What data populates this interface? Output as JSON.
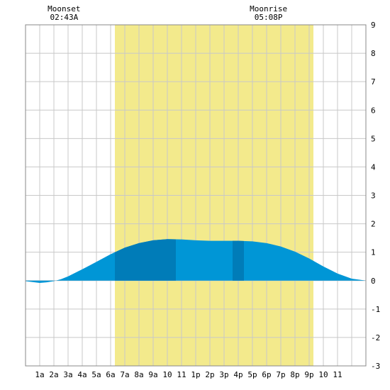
{
  "moon_events": [
    {
      "label": "Moonset",
      "time": "02:43A",
      "hour": 2.717
    },
    {
      "label": "Moonrise",
      "time": "05:08P",
      "hour": 17.133
    }
  ],
  "chart_data": {
    "type": "area",
    "title": "",
    "xlabel": "",
    "ylabel": "",
    "x_tick_labels": [
      "1a",
      "2a",
      "3a",
      "4a",
      "5a",
      "6a",
      "7a",
      "8a",
      "9a",
      "10",
      "11",
      "1p",
      "2p",
      "3p",
      "4p",
      "5p",
      "6p",
      "7p",
      "8p",
      "9p",
      "10",
      "11"
    ],
    "y_tick_labels": [
      "9",
      "8",
      "7",
      "6",
      "5",
      "4",
      "3",
      "2",
      "1",
      "0",
      "-1",
      "-2",
      "-3"
    ],
    "xlim": [
      0,
      24
    ],
    "ylim": [
      -3,
      9
    ],
    "grid": true,
    "daylight": {
      "start_hour": 6.3,
      "end_hour": 20.3,
      "color": "#f3ea8c"
    },
    "colors": {
      "tide_light": "#0096d6",
      "tide_dark": "#007cb8",
      "grid": "#c8c8c8",
      "frame": "#888888"
    },
    "dark_bands": [
      {
        "start_hour": 6.3,
        "end_hour": 10.6
      },
      {
        "start_hour": 14.6,
        "end_hour": 15.4
      }
    ],
    "series": [
      {
        "x": [
          0,
          0.5,
          1,
          1.5,
          2,
          2.5,
          3,
          4,
          5,
          6,
          7,
          8,
          9,
          10,
          11,
          12,
          13,
          14,
          15,
          16,
          17,
          18,
          19,
          20,
          21,
          22,
          23,
          24
        ],
        "y": [
          -0.02,
          -0.05,
          -0.08,
          -0.06,
          -0.02,
          0.05,
          0.15,
          0.4,
          0.66,
          0.93,
          1.16,
          1.32,
          1.42,
          1.46,
          1.45,
          1.42,
          1.4,
          1.4,
          1.4,
          1.38,
          1.32,
          1.2,
          1.02,
          0.78,
          0.5,
          0.25,
          0.07,
          0.0
        ]
      }
    ]
  }
}
